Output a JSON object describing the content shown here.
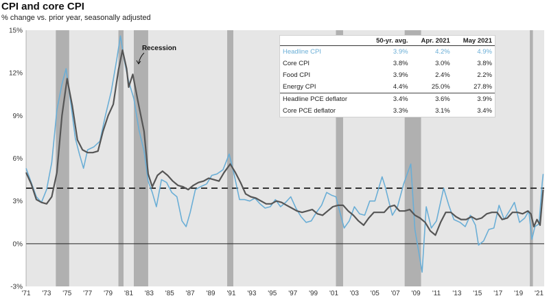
{
  "chart_data": {
    "type": "line",
    "title": "CPI and core CPI",
    "subtitle": "% change vs. prior year, seasonally adjusted",
    "xlabel": "",
    "ylabel": "",
    "xlim": [
      1971,
      2021.5
    ],
    "ylim": [
      -3,
      15
    ],
    "y_ticks": [
      -3,
      0,
      3,
      6,
      9,
      12,
      15
    ],
    "y_tick_labels": [
      "-3%",
      "0%",
      "3%",
      "6%",
      "9%",
      "12%",
      "15%"
    ],
    "x_ticks": [
      1971,
      1973,
      1975,
      1977,
      1979,
      1981,
      1983,
      1985,
      1987,
      1989,
      1991,
      1993,
      1995,
      1997,
      1999,
      2001,
      2003,
      2005,
      2007,
      2009,
      2011,
      2013,
      2015,
      2017,
      2019,
      2021
    ],
    "x_tick_labels": [
      "'71",
      "'73",
      "'75",
      "'77",
      "'79",
      "'81",
      "'83",
      "'85",
      "'87",
      "'89",
      "'91",
      "'93",
      "'95",
      "'97",
      "'99",
      "'01",
      "'03",
      "'05",
      "'07",
      "'09",
      "'11",
      "'13",
      "'15",
      "'17",
      "'19",
      "'21"
    ],
    "reference_line": {
      "value": 3.9,
      "style": "dashed",
      "color": "#333333",
      "label": "Headline CPI 50-yr. avg."
    },
    "recessions": [
      [
        1973.9,
        1975.2
      ],
      [
        1980.0,
        1980.5
      ],
      [
        1981.5,
        1982.9
      ],
      [
        1990.6,
        1991.2
      ],
      [
        2001.2,
        2001.9
      ],
      [
        2007.9,
        2009.5
      ],
      [
        2020.1,
        2020.4
      ]
    ],
    "annotations": [
      {
        "text": "Recession",
        "x": 1982.3,
        "y": 13.6
      }
    ],
    "series": [
      {
        "name": "Headline CPI",
        "color": "#6aaed6",
        "points": [
          [
            1971,
            5.3
          ],
          [
            1971.5,
            4.3
          ],
          [
            1972,
            3.3
          ],
          [
            1972.5,
            2.9
          ],
          [
            1973,
            3.8
          ],
          [
            1973.5,
            5.7
          ],
          [
            1974,
            9.4
          ],
          [
            1974.5,
            11.2
          ],
          [
            1974.9,
            12.3
          ],
          [
            1975.3,
            10.2
          ],
          [
            1975.8,
            7.4
          ],
          [
            1976.2,
            6.3
          ],
          [
            1976.6,
            5.3
          ],
          [
            1977,
            6.6
          ],
          [
            1977.6,
            6.8
          ],
          [
            1978.2,
            7.2
          ],
          [
            1978.7,
            8.9
          ],
          [
            1979.3,
            10.7
          ],
          [
            1979.8,
            12.8
          ],
          [
            1980.2,
            14.6
          ],
          [
            1980.6,
            12.8
          ],
          [
            1981,
            11.4
          ],
          [
            1981.5,
            10.2
          ],
          [
            1982,
            8.0
          ],
          [
            1982.5,
            6.5
          ],
          [
            1982.9,
            4.4
          ],
          [
            1983.3,
            3.6
          ],
          [
            1983.7,
            2.6
          ],
          [
            1984.2,
            4.5
          ],
          [
            1984.7,
            4.3
          ],
          [
            1985.2,
            3.6
          ],
          [
            1985.7,
            3.3
          ],
          [
            1986.2,
            1.6
          ],
          [
            1986.6,
            1.2
          ],
          [
            1987,
            2.2
          ],
          [
            1987.5,
            3.8
          ],
          [
            1988,
            4.0
          ],
          [
            1988.6,
            4.2
          ],
          [
            1989.1,
            4.8
          ],
          [
            1989.6,
            4.9
          ],
          [
            1990.2,
            5.2
          ],
          [
            1990.8,
            6.3
          ],
          [
            1991.3,
            4.8
          ],
          [
            1991.8,
            3.1
          ],
          [
            1992.3,
            3.1
          ],
          [
            1992.8,
            3.0
          ],
          [
            1993.3,
            3.2
          ],
          [
            1993.8,
            2.8
          ],
          [
            1994.3,
            2.5
          ],
          [
            1994.8,
            2.6
          ],
          [
            1995.3,
            3.1
          ],
          [
            1995.8,
            2.6
          ],
          [
            1996.3,
            2.9
          ],
          [
            1996.8,
            3.3
          ],
          [
            1997.3,
            2.5
          ],
          [
            1997.8,
            1.9
          ],
          [
            1998.3,
            1.5
          ],
          [
            1998.8,
            1.6
          ],
          [
            1999.3,
            2.2
          ],
          [
            1999.8,
            2.7
          ],
          [
            2000.3,
            3.6
          ],
          [
            2000.8,
            3.4
          ],
          [
            2001.2,
            3.3
          ],
          [
            2001.7,
            1.9
          ],
          [
            2002,
            1.1
          ],
          [
            2002.5,
            1.6
          ],
          [
            2003,
            2.6
          ],
          [
            2003.5,
            2.1
          ],
          [
            2004,
            2.0
          ],
          [
            2004.5,
            3.0
          ],
          [
            2005,
            3.0
          ],
          [
            2005.7,
            4.7
          ],
          [
            2006,
            4.0
          ],
          [
            2006.7,
            2.0
          ],
          [
            2007.2,
            2.6
          ],
          [
            2007.8,
            4.2
          ],
          [
            2008.5,
            5.6
          ],
          [
            2008.9,
            1.0
          ],
          [
            2009.3,
            -0.7
          ],
          [
            2009.6,
            -2.0
          ],
          [
            2010,
            2.6
          ],
          [
            2010.5,
            1.1
          ],
          [
            2011,
            1.6
          ],
          [
            2011.7,
            3.9
          ],
          [
            2012.2,
            2.7
          ],
          [
            2012.7,
            1.7
          ],
          [
            2013.3,
            1.5
          ],
          [
            2013.8,
            1.2
          ],
          [
            2014.3,
            2.0
          ],
          [
            2014.8,
            1.3
          ],
          [
            2015.1,
            -0.1
          ],
          [
            2015.6,
            0.2
          ],
          [
            2016.1,
            1.0
          ],
          [
            2016.6,
            1.1
          ],
          [
            2017.1,
            2.7
          ],
          [
            2017.6,
            1.7
          ],
          [
            2018.2,
            2.4
          ],
          [
            2018.6,
            2.9
          ],
          [
            2019.1,
            1.5
          ],
          [
            2019.6,
            1.8
          ],
          [
            2020.0,
            2.3
          ],
          [
            2020.3,
            0.3
          ],
          [
            2020.6,
            1.2
          ],
          [
            2021.0,
            1.4
          ],
          [
            2021.3,
            4.2
          ],
          [
            2021.4,
            4.9
          ]
        ]
      },
      {
        "name": "Core CPI",
        "color": "#555555",
        "points": [
          [
            1971,
            5.0
          ],
          [
            1971.5,
            4.2
          ],
          [
            1972,
            3.1
          ],
          [
            1972.5,
            2.9
          ],
          [
            1973,
            2.8
          ],
          [
            1973.5,
            3.3
          ],
          [
            1974,
            5.0
          ],
          [
            1974.5,
            9.0
          ],
          [
            1975,
            11.6
          ],
          [
            1975.5,
            9.7
          ],
          [
            1976,
            7.3
          ],
          [
            1976.5,
            6.6
          ],
          [
            1977,
            6.4
          ],
          [
            1977.5,
            6.4
          ],
          [
            1978,
            6.5
          ],
          [
            1978.5,
            7.9
          ],
          [
            1979,
            9.0
          ],
          [
            1979.5,
            9.8
          ],
          [
            1980,
            12.2
          ],
          [
            1980.4,
            13.6
          ],
          [
            1980.8,
            12.3
          ],
          [
            1981,
            11.0
          ],
          [
            1981.4,
            11.9
          ],
          [
            1981.9,
            10.0
          ],
          [
            1982.5,
            7.9
          ],
          [
            1982.9,
            4.9
          ],
          [
            1983.3,
            4.0
          ],
          [
            1983.8,
            4.8
          ],
          [
            1984.3,
            5.1
          ],
          [
            1984.8,
            4.8
          ],
          [
            1985.3,
            4.4
          ],
          [
            1985.8,
            4.1
          ],
          [
            1986.3,
            4.0
          ],
          [
            1986.8,
            3.8
          ],
          [
            1987.3,
            4.1
          ],
          [
            1987.8,
            4.3
          ],
          [
            1988.3,
            4.4
          ],
          [
            1988.8,
            4.6
          ],
          [
            1989.3,
            4.5
          ],
          [
            1989.8,
            4.4
          ],
          [
            1990.3,
            5.0
          ],
          [
            1990.9,
            5.6
          ],
          [
            1991.4,
            5.0
          ],
          [
            1991.9,
            4.3
          ],
          [
            1992.4,
            3.5
          ],
          [
            1992.9,
            3.3
          ],
          [
            1993.4,
            3.2
          ],
          [
            1993.9,
            3.0
          ],
          [
            1994.4,
            2.8
          ],
          [
            1994.9,
            2.8
          ],
          [
            1995.4,
            3.0
          ],
          [
            1995.9,
            2.9
          ],
          [
            1996.4,
            2.7
          ],
          [
            1996.9,
            2.5
          ],
          [
            1997.4,
            2.3
          ],
          [
            1997.9,
            2.2
          ],
          [
            1998.4,
            2.3
          ],
          [
            1998.9,
            2.4
          ],
          [
            1999.4,
            2.1
          ],
          [
            1999.9,
            2.0
          ],
          [
            2000.4,
            2.3
          ],
          [
            2000.9,
            2.6
          ],
          [
            2001.4,
            2.7
          ],
          [
            2001.9,
            2.7
          ],
          [
            2002.4,
            2.3
          ],
          [
            2002.9,
            2.0
          ],
          [
            2003.4,
            1.6
          ],
          [
            2003.9,
            1.3
          ],
          [
            2004.4,
            1.8
          ],
          [
            2004.9,
            2.2
          ],
          [
            2005.4,
            2.2
          ],
          [
            2005.9,
            2.2
          ],
          [
            2006.4,
            2.6
          ],
          [
            2006.9,
            2.7
          ],
          [
            2007.4,
            2.3
          ],
          [
            2007.9,
            2.3
          ],
          [
            2008.4,
            2.4
          ],
          [
            2008.9,
            2.0
          ],
          [
            2009.4,
            1.8
          ],
          [
            2009.9,
            1.5
          ],
          [
            2010.4,
            0.9
          ],
          [
            2010.9,
            0.6
          ],
          [
            2011.4,
            1.5
          ],
          [
            2011.9,
            2.2
          ],
          [
            2012.4,
            2.2
          ],
          [
            2012.9,
            1.9
          ],
          [
            2013.4,
            1.7
          ],
          [
            2013.9,
            1.7
          ],
          [
            2014.4,
            1.9
          ],
          [
            2014.9,
            1.7
          ],
          [
            2015.4,
            1.8
          ],
          [
            2015.9,
            2.1
          ],
          [
            2016.4,
            2.2
          ],
          [
            2016.9,
            2.2
          ],
          [
            2017.4,
            1.7
          ],
          [
            2017.9,
            1.8
          ],
          [
            2018.4,
            2.2
          ],
          [
            2018.9,
            2.2
          ],
          [
            2019.4,
            2.1
          ],
          [
            2019.9,
            2.3
          ],
          [
            2020.2,
            2.1
          ],
          [
            2020.5,
            1.2
          ],
          [
            2020.8,
            1.7
          ],
          [
            2021.1,
            1.3
          ],
          [
            2021.3,
            3.0
          ],
          [
            2021.4,
            3.8
          ]
        ]
      }
    ],
    "table": {
      "columns": [
        "",
        "50-yr. avg.",
        "Apr. 2021",
        "May 2021"
      ],
      "rows": [
        {
          "label": "Headline CPI",
          "values": [
            "3.9%",
            "4.2%",
            "4.9%"
          ],
          "highlight": true
        },
        {
          "label": "Core CPI",
          "values": [
            "3.8%",
            "3.0%",
            "3.8%"
          ],
          "highlight": false
        },
        {
          "label": "Food CPI",
          "values": [
            "3.9%",
            "2.4%",
            "2.2%"
          ],
          "highlight": false
        },
        {
          "label": "Energy CPI",
          "values": [
            "4.4%",
            "25.0%",
            "27.8%"
          ],
          "highlight": false
        },
        {
          "label": "Headline PCE deflator",
          "values": [
            "3.4%",
            "3.6%",
            "3.9%"
          ],
          "highlight": false
        },
        {
          "label": "Core PCE deflator",
          "values": [
            "3.3%",
            "3.1%",
            "3.4%"
          ],
          "highlight": false
        }
      ]
    }
  }
}
